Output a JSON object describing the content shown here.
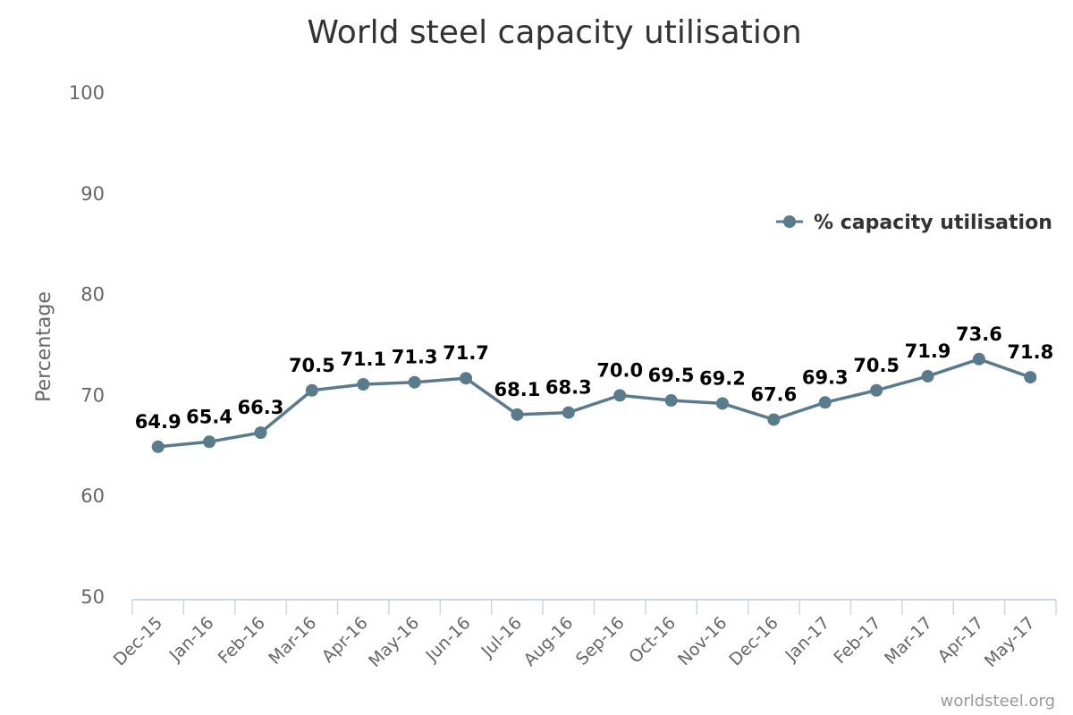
{
  "chart_data": {
    "type": "line",
    "title": "World steel capacity utilisation",
    "ylabel": "Percentage",
    "xlabel": "",
    "ylim": [
      50,
      100
    ],
    "yticks": [
      50,
      60,
      70,
      80,
      90,
      100
    ],
    "grid": false,
    "legend_position": "right",
    "categories": [
      "Dec-15",
      "Jan-16",
      "Feb-16",
      "Mar-16",
      "Apr-16",
      "May-16",
      "Jun-16",
      "Jul-16",
      "Aug-16",
      "Sep-16",
      "Oct-16",
      "Nov-16",
      "Dec-16",
      "Jan-17",
      "Feb-17",
      "Mar-17",
      "Apr-17",
      "May-17"
    ],
    "series": [
      {
        "name": "% capacity utilisation",
        "color": "#5a7b8c",
        "values": [
          64.9,
          65.4,
          66.3,
          70.5,
          71.1,
          71.3,
          71.7,
          68.1,
          68.3,
          70.0,
          69.5,
          69.2,
          67.6,
          69.3,
          70.5,
          71.9,
          73.6,
          71.8
        ],
        "labels": [
          "64.9",
          "65.4",
          "66.3",
          "70.5",
          "71.1",
          "71.3",
          "71.7",
          "68.1",
          "68.3",
          "70.0",
          "69.5",
          "69.2",
          "67.6",
          "69.3",
          "70.5",
          "71.9",
          "73.6",
          "71.8"
        ]
      }
    ],
    "credit": "worldsteel.org"
  }
}
